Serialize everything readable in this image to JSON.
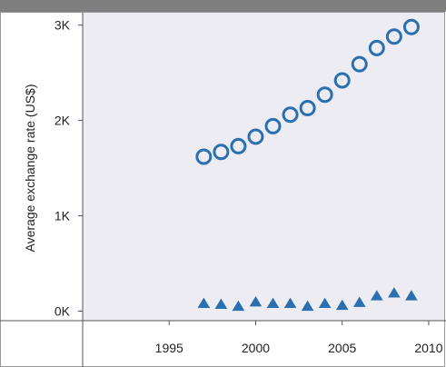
{
  "chart_data": {
    "type": "scatter",
    "title": "",
    "xlabel": "",
    "ylabel": "Average exchange rate (US$)",
    "xlim": [
      1990,
      2011
    ],
    "ylim": [
      -100,
      3130
    ],
    "x_ticks": [
      1995,
      2000,
      2005,
      2010
    ],
    "x_tick_labels": [
      "1995",
      "2000",
      "2005",
      "2010"
    ],
    "y_ticks": [
      0,
      1000,
      2000,
      3000
    ],
    "y_tick_labels": [
      "0K",
      "1K",
      "2K",
      "3K"
    ],
    "grid": false,
    "legend": "none",
    "series": [
      {
        "marker": "circle-open",
        "color": "#2a6fb0",
        "x": [
          1997,
          1998,
          1999,
          2000,
          2001,
          2002,
          2003,
          2004,
          2005,
          2006,
          2007,
          2008,
          2009
        ],
        "y": [
          1620,
          1670,
          1730,
          1830,
          1940,
          2060,
          2130,
          2270,
          2420,
          2590,
          2760,
          2880,
          2980
        ]
      },
      {
        "marker": "triangle",
        "color": "#2a6fb0",
        "x": [
          1997,
          1998,
          1999,
          2000,
          2001,
          2002,
          2003,
          2004,
          2005,
          2006,
          2007,
          2008,
          2009
        ],
        "y": [
          80,
          70,
          50,
          95,
          80,
          80,
          50,
          80,
          60,
          90,
          160,
          190,
          160
        ]
      }
    ]
  },
  "colors": {
    "plot_background": "#ececf2",
    "top_band": "#7f7f7f",
    "axis_line": "#555555"
  }
}
